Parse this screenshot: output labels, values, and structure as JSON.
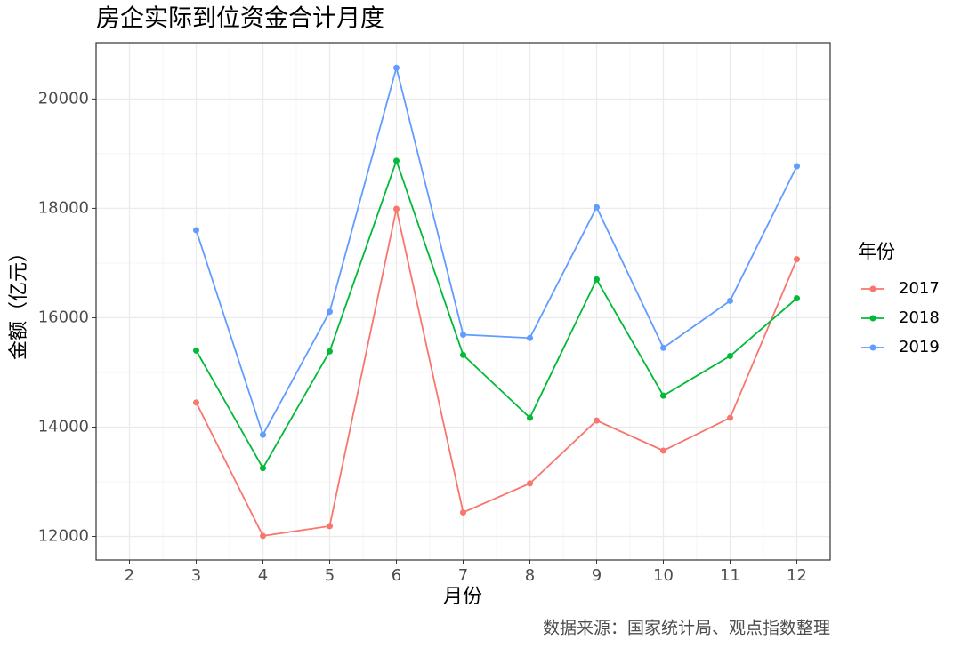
{
  "chart_data": {
    "type": "line",
    "title": "房企实际到位资金合计月度",
    "x_label": "月份",
    "y_label": "金额（亿元）",
    "caption": "数据来源：国家统计局、观点指数整理",
    "legend_title": "年份",
    "legend_position": "right",
    "grid": true,
    "x": [
      3,
      4,
      5,
      6,
      7,
      8,
      9,
      10,
      11,
      12
    ],
    "series": [
      {
        "name": "2017",
        "color": "#F8766D",
        "values": [
          14450,
          12010,
          12190,
          17990,
          12440,
          12970,
          14120,
          13570,
          14170,
          17070
        ]
      },
      {
        "name": "2018",
        "color": "#00BA38",
        "values": [
          15400,
          13250,
          15385,
          18870,
          15320,
          14170,
          16700,
          14575,
          15300,
          16355
        ]
      },
      {
        "name": "2019",
        "color": "#619CFF",
        "values": [
          17600,
          13860,
          16110,
          20570,
          15690,
          15630,
          18020,
          15450,
          16310,
          18770
        ]
      }
    ],
    "xlim": [
      1.5,
      12.5
    ],
    "xticks": [
      2,
      3,
      4,
      5,
      6,
      7,
      8,
      9,
      10,
      11,
      12
    ],
    "ylim": [
      11570,
      21030
    ],
    "yticks": [
      12000,
      14000,
      16000,
      18000,
      20000
    ]
  }
}
